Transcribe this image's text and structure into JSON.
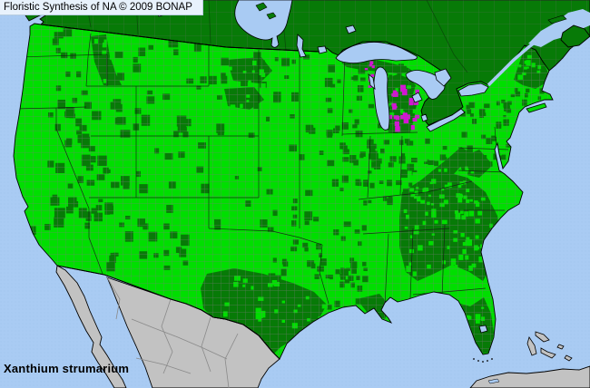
{
  "header": {
    "title": "Floristic Synthesis of NA © 2009 BONAP"
  },
  "footer": {
    "species": "Xanthium strumarium"
  },
  "colors": {
    "water": "#A9CBF3",
    "water_dot": "#9CC0EA",
    "county_present_bright_green": "#00DE00",
    "state_present_dark_green": "#077A07",
    "adventive_magenta": "#D414D4",
    "no_data_gray": "#C2C2C2",
    "county_line_gray": "#7A7A7A",
    "political_border_black": "#000000",
    "title_bg": "#E8F2FC",
    "title_text": "#000000",
    "species_text": "#000000"
  },
  "map": {
    "regions": [
      "Canada",
      "United States",
      "Mexico",
      "Cuba",
      "Bahamas",
      "Vancouver Island",
      "Nova Scotia",
      "Long Island"
    ],
    "waterbodies": [
      "Pacific Ocean",
      "Atlantic Ocean",
      "Gulf of Mexico",
      "Hudson Bay",
      "Lake Winnipeg",
      "Lake Superior",
      "Lake Michigan",
      "Lake Huron",
      "Lake Erie",
      "Lake Ontario",
      "St. Lawrence River",
      "Gulf of St. Lawrence",
      "Gulf of California",
      "Lake Okeechobee"
    ]
  }
}
